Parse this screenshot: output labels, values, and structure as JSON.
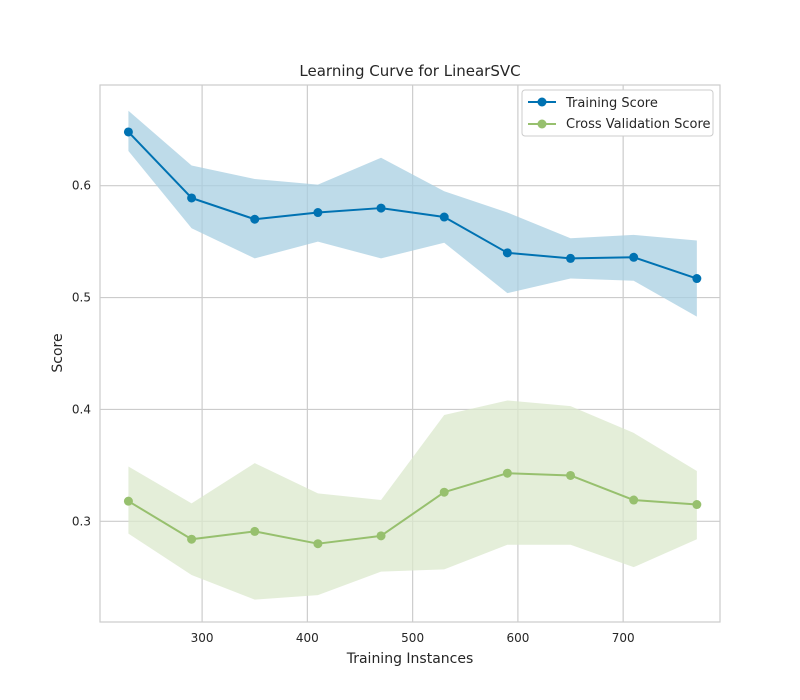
{
  "chart_data": {
    "type": "line",
    "title": "Learning Curve for LinearSVC",
    "xlabel": "Training Instances",
    "ylabel": "Score",
    "xlim": [
      203,
      792
    ],
    "ylim": [
      0.21,
      0.69
    ],
    "xticks": [
      300,
      400,
      500,
      600,
      700
    ],
    "yticks": [
      0.3,
      0.4,
      0.5,
      0.6
    ],
    "ytick_labels": [
      "0.3",
      "0.4",
      "0.5",
      "0.6"
    ],
    "grid": true,
    "legend_position": "upper-right",
    "x": [
      230,
      290,
      350,
      410,
      470,
      530,
      590,
      650,
      710,
      770
    ],
    "series": [
      {
        "name": "Training Score",
        "color": "#0072b2",
        "band_color": "#a8cfe1",
        "values": [
          0.648,
          0.589,
          0.57,
          0.576,
          0.58,
          0.572,
          0.54,
          0.535,
          0.536,
          0.517
        ],
        "upper": [
          0.667,
          0.618,
          0.606,
          0.601,
          0.625,
          0.595,
          0.576,
          0.553,
          0.556,
          0.551
        ],
        "lower": [
          0.631,
          0.562,
          0.535,
          0.55,
          0.535,
          0.549,
          0.504,
          0.517,
          0.515,
          0.483
        ]
      },
      {
        "name": "Cross Validation Score",
        "color": "#97c06e",
        "band_color": "#dbe8cc",
        "values": [
          0.318,
          0.284,
          0.291,
          0.28,
          0.287,
          0.326,
          0.343,
          0.341,
          0.319,
          0.315
        ],
        "upper": [
          0.349,
          0.316,
          0.352,
          0.325,
          0.319,
          0.395,
          0.408,
          0.403,
          0.379,
          0.345
        ],
        "lower": [
          0.289,
          0.252,
          0.23,
          0.234,
          0.255,
          0.257,
          0.279,
          0.279,
          0.259,
          0.284
        ]
      }
    ]
  }
}
